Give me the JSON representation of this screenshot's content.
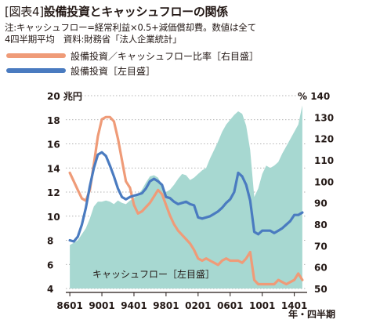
{
  "header": {
    "tag": "[図表4]",
    "title": "設備投資とキャッシュフローの関係",
    "note_line1": "注:キャッシュフロー=経常利益×0.5+減価償却費。数値は全て",
    "note_line2": "4四半期平均　資料:財務省「法人企業統計」"
  },
  "colors": {
    "area": "#a7d8d1",
    "ratio_line": "#ef9b78",
    "capex_line": "#4a7bc0",
    "text": "#231815"
  },
  "chart_data": {
    "type": "line",
    "left_axis_unit": "20 兆円",
    "right_axis_unit": "% 140",
    "x_axis_unit": "年・四半期",
    "y_left_ticks": [
      "18",
      "16",
      "14",
      "12",
      "10",
      "8",
      "6",
      "4"
    ],
    "y_right_ticks": [
      "130",
      "120",
      "110",
      "100",
      "90",
      "80",
      "70",
      "60",
      "50"
    ],
    "x_ticks": [
      "8601",
      "9001",
      "9401",
      "9801",
      "0201",
      "0601",
      "1001",
      "1401"
    ],
    "ylim_left": [
      4,
      20
    ],
    "ylim_right": [
      50,
      140
    ],
    "grid": true,
    "legend": [
      "設備投資／キャッシュフロー比率［右目盛］",
      "設備投資［左目盛］"
    ],
    "area_label": "キャッシュフロー［左目盛］",
    "series": [
      {
        "name": "キャッシュフロー［左目盛］",
        "axis": "left",
        "type": "area",
        "x": [
          1986.0,
          1987.0,
          1988.0,
          1988.5,
          1989.0,
          1989.5,
          1990.0,
          1990.5,
          1991.0,
          1991.5,
          1992.0,
          1992.5,
          1993.0,
          1993.5,
          1994.0,
          1994.5,
          1995.0,
          1995.5,
          1996.0,
          1996.5,
          1997.0,
          1997.5,
          1998.0,
          1998.5,
          1999.0,
          1999.5,
          2000.0,
          2000.5,
          2001.0,
          2001.5,
          2002.0,
          2002.5,
          2003.0,
          2003.5,
          2004.0,
          2004.5,
          2005.0,
          2005.5,
          2006.0,
          2006.5,
          2007.0,
          2007.5,
          2008.0,
          2008.5,
          2009.0,
          2009.5,
          2010.0,
          2010.5,
          2011.0,
          2011.5,
          2012.0,
          2012.5,
          2013.0,
          2013.5,
          2014.0,
          2014.5,
          2015.0
        ],
        "values": [
          7.6,
          8.0,
          9.0,
          9.8,
          10.8,
          11.2,
          11.2,
          11.3,
          11.2,
          11.0,
          11.3,
          11.1,
          11.0,
          11.3,
          11.5,
          11.8,
          12.2,
          12.8,
          13.3,
          13.4,
          13.2,
          12.6,
          12.0,
          12.2,
          12.6,
          13.1,
          13.5,
          13.4,
          13.0,
          13.2,
          13.5,
          13.8,
          14.0,
          14.8,
          15.5,
          16.2,
          17.0,
          17.6,
          18.0,
          18.4,
          18.7,
          18.5,
          17.5,
          15.5,
          11.6,
          12.3,
          13.5,
          14.2,
          14.0,
          14.2,
          14.5,
          15.2,
          15.8,
          16.4,
          17.0,
          17.6,
          19.2
        ]
      },
      {
        "name": "設備投資［左目盛］",
        "axis": "left",
        "type": "line",
        "x": [
          1986.0,
          1986.5,
          1987.0,
          1987.5,
          1988.0,
          1988.5,
          1989.0,
          1989.5,
          1990.0,
          1990.5,
          1991.0,
          1991.5,
          1992.0,
          1992.5,
          1993.0,
          1993.5,
          1994.0,
          1994.5,
          1995.0,
          1995.5,
          1996.0,
          1996.5,
          1997.0,
          1997.5,
          1998.0,
          1998.5,
          1999.0,
          1999.5,
          2000.0,
          2000.5,
          2001.0,
          2001.5,
          2002.0,
          2002.5,
          2003.0,
          2003.5,
          2004.0,
          2004.5,
          2005.0,
          2005.5,
          2006.0,
          2006.5,
          2007.0,
          2007.5,
          2008.0,
          2008.5,
          2009.0,
          2009.5,
          2010.0,
          2010.5,
          2011.0,
          2011.5,
          2012.0,
          2012.5,
          2013.0,
          2013.5,
          2014.0,
          2014.5,
          2015.0
        ],
        "values": [
          8.0,
          7.9,
          8.3,
          9.3,
          10.7,
          12.5,
          14.0,
          15.1,
          15.3,
          15.0,
          14.2,
          13.3,
          12.3,
          11.6,
          11.4,
          11.6,
          11.7,
          11.8,
          11.9,
          12.3,
          12.9,
          13.1,
          12.9,
          12.6,
          11.6,
          11.5,
          11.2,
          11.0,
          11.1,
          11.2,
          11.0,
          10.9,
          9.9,
          9.8,
          9.9,
          10.0,
          10.2,
          10.4,
          10.7,
          11.1,
          11.4,
          12.0,
          13.6,
          13.3,
          12.6,
          11.3,
          8.7,
          8.5,
          8.8,
          8.8,
          8.8,
          8.6,
          8.8,
          9.0,
          9.3,
          9.6,
          10.1,
          10.1,
          10.3
        ]
      },
      {
        "name": "設備投資／キャッシュフロー比率［右目盛］",
        "axis": "right",
        "type": "line",
        "x": [
          1986.0,
          1986.5,
          1987.0,
          1987.5,
          1988.0,
          1988.5,
          1989.0,
          1989.5,
          1990.0,
          1990.5,
          1991.0,
          1991.5,
          1992.0,
          1992.5,
          1993.0,
          1993.5,
          1994.0,
          1994.5,
          1995.0,
          1995.5,
          1996.0,
          1996.5,
          1997.0,
          1997.5,
          1998.0,
          1998.5,
          1999.0,
          1999.5,
          2000.0,
          2000.5,
          2001.0,
          2001.5,
          2002.0,
          2002.5,
          2003.0,
          2003.5,
          2004.0,
          2004.5,
          2005.0,
          2005.5,
          2006.0,
          2006.5,
          2007.0,
          2007.5,
          2008.0,
          2008.5,
          2009.0,
          2009.5,
          2010.0,
          2010.5,
          2011.0,
          2011.5,
          2012.0,
          2012.5,
          2013.0,
          2013.5,
          2014.0,
          2014.5,
          2015.0
        ],
        "values": [
          104,
          100,
          96,
          92,
          91,
          96,
          108,
          121,
          129,
          130,
          130,
          128,
          120,
          110,
          100,
          97,
          89,
          85,
          86,
          88,
          90,
          93,
          96,
          94,
          89,
          84,
          80,
          77,
          75,
          73,
          71,
          68,
          64,
          63,
          64,
          63,
          62,
          61,
          63,
          64,
          63,
          63,
          63,
          62,
          64,
          67,
          54,
          52,
          52,
          52,
          52,
          52,
          54,
          53,
          52,
          53,
          54,
          57,
          54
        ]
      }
    ]
  }
}
